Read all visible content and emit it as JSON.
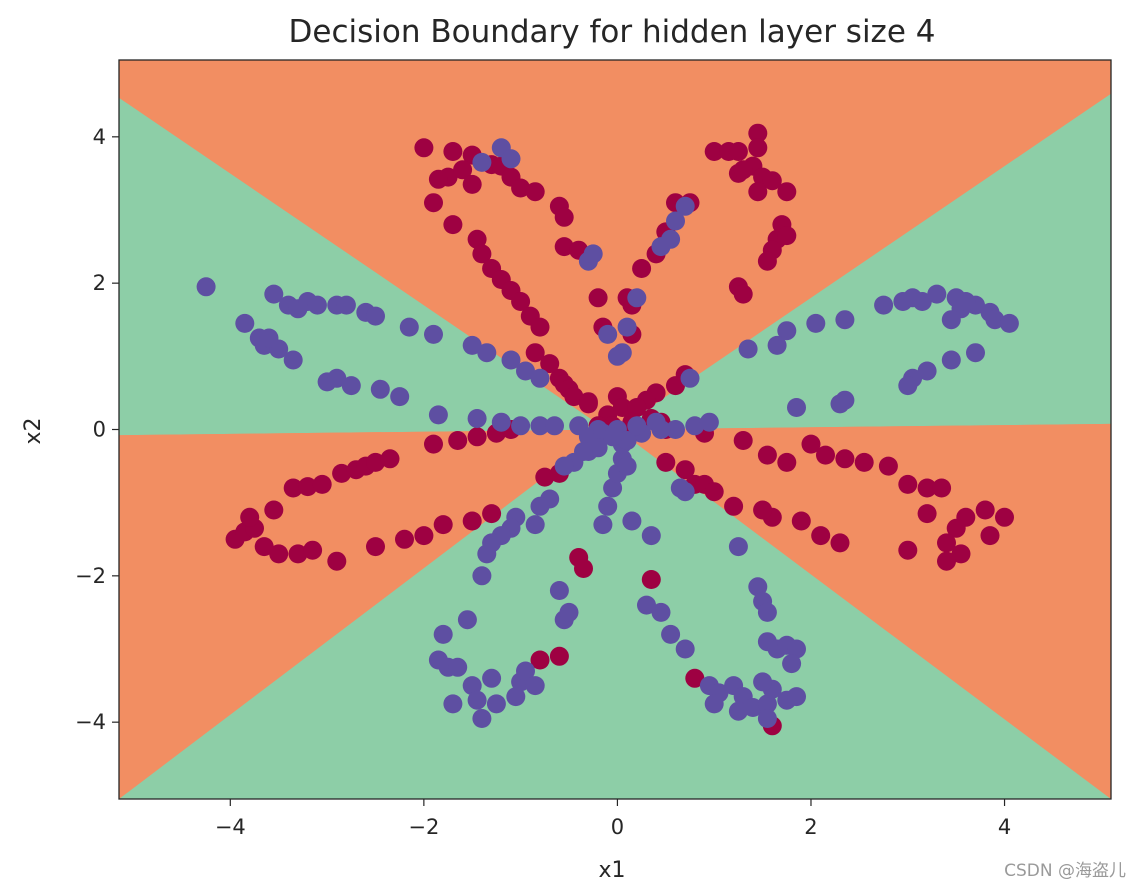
{
  "chart_data": {
    "type": "scatter",
    "title": "Decision Boundary for hidden layer size 4",
    "xlabel": "x1",
    "ylabel": "x2",
    "xlim": [
      -5.15,
      5.1
    ],
    "ylim": [
      -5.05,
      5.05
    ],
    "xticks": [
      -4,
      -2,
      0,
      2,
      4
    ],
    "xtick_labels": [
      "−4",
      "−2",
      "0",
      "2",
      "4"
    ],
    "yticks": [
      4,
      2,
      0,
      -2,
      -4
    ],
    "ytick_labels": [
      "4",
      "2",
      "0",
      "−2",
      "−4"
    ],
    "grid": false,
    "decision_regions": {
      "colors": {
        "class0": "#f28e62",
        "class1": "#8dcea7"
      },
      "boundary_lines": [
        {
          "slope": -0.9,
          "intercept": -0.1
        },
        {
          "slope": 0.9,
          "intercept": 0.0
        },
        {
          "slope": 0.015,
          "intercept": 0.0
        }
      ],
      "regions": [
        {
          "name": "left",
          "class": 1
        },
        {
          "name": "top",
          "class": 0
        },
        {
          "name": "right",
          "class": 1
        },
        {
          "name": "lower-left",
          "class": 0
        },
        {
          "name": "lower-right",
          "class": 0
        },
        {
          "name": "bottom",
          "class": 1
        }
      ]
    },
    "series": [
      {
        "color": "#9e0142",
        "points": [
          [
            -2.0,
            3.85
          ],
          [
            -1.7,
            3.8
          ],
          [
            -1.5,
            3.75
          ],
          [
            -1.3,
            3.62
          ],
          [
            -1.2,
            3.6
          ],
          [
            -1.75,
            3.45
          ],
          [
            -1.6,
            3.55
          ],
          [
            -1.85,
            3.42
          ],
          [
            -1.5,
            3.35
          ],
          [
            -1.1,
            3.45
          ],
          [
            -1.0,
            3.3
          ],
          [
            -0.85,
            3.25
          ],
          [
            -0.6,
            3.05
          ],
          [
            -0.55,
            2.9
          ],
          [
            -1.9,
            3.1
          ],
          [
            -1.7,
            2.8
          ],
          [
            -1.45,
            2.6
          ],
          [
            -1.4,
            2.4
          ],
          [
            -1.3,
            2.2
          ],
          [
            -1.2,
            2.05
          ],
          [
            -1.1,
            1.9
          ],
          [
            -1.0,
            1.75
          ],
          [
            -0.9,
            1.55
          ],
          [
            -0.8,
            1.4
          ],
          [
            -0.55,
            2.5
          ],
          [
            -0.4,
            2.45
          ],
          [
            -0.2,
            1.8
          ],
          [
            -0.15,
            1.4
          ],
          [
            -0.6,
            0.7
          ],
          [
            -0.85,
            1.05
          ],
          [
            -0.7,
            0.9
          ],
          [
            -0.55,
            0.62
          ],
          [
            -0.5,
            0.55
          ],
          [
            -0.45,
            0.45
          ],
          [
            -0.3,
            0.38
          ],
          [
            -0.1,
            0.2
          ],
          [
            0.0,
            0.45
          ],
          [
            0.05,
            0.3
          ],
          [
            0.15,
            1.7
          ],
          [
            0.25,
            2.2
          ],
          [
            0.4,
            2.4
          ],
          [
            0.5,
            2.7
          ],
          [
            0.6,
            3.1
          ],
          [
            0.75,
            3.1
          ],
          [
            1.0,
            3.8
          ],
          [
            1.15,
            3.8
          ],
          [
            1.25,
            3.5
          ],
          [
            1.4,
            3.6
          ],
          [
            1.5,
            3.45
          ],
          [
            1.6,
            3.4
          ],
          [
            1.75,
            3.25
          ],
          [
            1.45,
            3.25
          ],
          [
            1.3,
            3.55
          ],
          [
            1.25,
            3.8
          ],
          [
            1.45,
            4.05
          ],
          [
            1.45,
            3.85
          ],
          [
            1.7,
            2.8
          ],
          [
            1.65,
            2.6
          ],
          [
            1.6,
            2.45
          ],
          [
            1.75,
            2.65
          ],
          [
            1.55,
            2.3
          ],
          [
            1.25,
            1.95
          ],
          [
            1.3,
            1.85
          ],
          [
            0.15,
            1.3
          ],
          [
            0.1,
            1.8
          ],
          [
            0.7,
            0.75
          ],
          [
            0.6,
            0.6
          ],
          [
            0.4,
            0.5
          ],
          [
            0.3,
            0.4
          ],
          [
            0.2,
            0.3
          ],
          [
            0.35,
            0.15
          ],
          [
            0.5,
            0.0
          ],
          [
            -3.95,
            -1.5
          ],
          [
            -3.85,
            -1.4
          ],
          [
            -3.75,
            -1.35
          ],
          [
            -3.65,
            -1.6
          ],
          [
            -3.5,
            -1.7
          ],
          [
            -3.3,
            -1.7
          ],
          [
            -3.15,
            -1.65
          ],
          [
            -2.9,
            -1.8
          ],
          [
            -3.8,
            -1.2
          ],
          [
            -3.55,
            -1.1
          ],
          [
            -3.35,
            -0.8
          ],
          [
            -3.2,
            -0.78
          ],
          [
            -3.05,
            -0.75
          ],
          [
            -2.85,
            -0.6
          ],
          [
            -2.7,
            -0.55
          ],
          [
            -2.6,
            -0.5
          ],
          [
            -2.5,
            -0.45
          ],
          [
            -2.35,
            -0.4
          ],
          [
            -2.2,
            -1.5
          ],
          [
            -2.5,
            -1.6
          ],
          [
            -2.0,
            -1.45
          ],
          [
            -1.8,
            -1.3
          ],
          [
            -1.5,
            -1.25
          ],
          [
            -1.3,
            -1.15
          ],
          [
            -1.9,
            -0.2
          ],
          [
            -1.65,
            -0.15
          ],
          [
            -1.45,
            -0.1
          ],
          [
            -1.25,
            -0.05
          ],
          [
            -1.1,
            0.0
          ],
          [
            -0.75,
            -0.65
          ],
          [
            -0.4,
            -1.75
          ],
          [
            -0.35,
            -1.9
          ],
          [
            -0.2,
            0.05
          ],
          [
            0.35,
            -2.05
          ],
          [
            0.7,
            -0.55
          ],
          [
            0.5,
            -0.45
          ],
          [
            0.8,
            -0.75
          ],
          [
            0.9,
            -0.75
          ],
          [
            1.0,
            -0.85
          ],
          [
            1.2,
            -1.05
          ],
          [
            1.6,
            -1.2
          ],
          [
            1.9,
            -1.25
          ],
          [
            2.1,
            -1.45
          ],
          [
            2.3,
            -1.55
          ],
          [
            1.5,
            -1.1
          ],
          [
            0.9,
            -0.05
          ],
          [
            1.3,
            -0.15
          ],
          [
            1.55,
            -0.35
          ],
          [
            1.75,
            -0.45
          ],
          [
            2.0,
            -0.2
          ],
          [
            2.15,
            -0.35
          ],
          [
            2.35,
            -0.4
          ],
          [
            2.55,
            -0.45
          ],
          [
            2.8,
            -0.5
          ],
          [
            3.0,
            -0.75
          ],
          [
            3.2,
            -0.8
          ],
          [
            3.35,
            -0.8
          ],
          [
            3.6,
            -1.2
          ],
          [
            3.8,
            -1.1
          ],
          [
            4.0,
            -1.2
          ],
          [
            3.5,
            -1.35
          ],
          [
            3.4,
            -1.55
          ],
          [
            3.55,
            -1.7
          ],
          [
            3.4,
            -1.8
          ],
          [
            3.0,
            -1.65
          ],
          [
            3.2,
            -1.15
          ],
          [
            3.85,
            -1.45
          ],
          [
            0.8,
            -3.4
          ],
          [
            -0.8,
            -3.15
          ],
          [
            -0.6,
            -3.1
          ],
          [
            1.6,
            -4.05
          ],
          [
            -0.3,
            0.35
          ],
          [
            0.15,
            0.1
          ],
          [
            -0.05,
            0.05
          ],
          [
            0.1,
            -0.05
          ],
          [
            0.45,
            0.1
          ],
          [
            -0.6,
            -0.6
          ]
        ]
      },
      {
        "color": "#5e4fa2",
        "points": [
          [
            -4.25,
            1.95
          ],
          [
            -3.85,
            1.45
          ],
          [
            -3.7,
            1.25
          ],
          [
            -3.65,
            1.15
          ],
          [
            -3.5,
            1.1
          ],
          [
            -3.35,
            0.95
          ],
          [
            -3.6,
            1.25
          ],
          [
            -3.55,
            1.85
          ],
          [
            -3.4,
            1.7
          ],
          [
            -3.3,
            1.65
          ],
          [
            -3.2,
            1.75
          ],
          [
            -3.1,
            1.7
          ],
          [
            -2.9,
            1.7
          ],
          [
            -2.8,
            1.7
          ],
          [
            -2.6,
            1.6
          ],
          [
            -2.5,
            1.55
          ],
          [
            -2.15,
            1.4
          ],
          [
            -1.9,
            1.3
          ],
          [
            -1.5,
            1.15
          ],
          [
            -1.35,
            1.05
          ],
          [
            -1.1,
            0.95
          ],
          [
            -0.95,
            0.8
          ],
          [
            -0.8,
            0.7
          ],
          [
            -3.0,
            0.65
          ],
          [
            -2.9,
            0.7
          ],
          [
            -2.75,
            0.6
          ],
          [
            -2.45,
            0.55
          ],
          [
            -2.25,
            0.45
          ],
          [
            -1.85,
            0.2
          ],
          [
            -1.45,
            0.15
          ],
          [
            -1.2,
            0.1
          ],
          [
            -1.0,
            0.05
          ],
          [
            -0.8,
            0.05
          ],
          [
            -0.65,
            0.05
          ],
          [
            -0.4,
            0.05
          ],
          [
            -0.2,
            0.0
          ],
          [
            -1.2,
            3.85
          ],
          [
            -1.1,
            3.7
          ],
          [
            -1.4,
            3.65
          ],
          [
            0.7,
            3.05
          ],
          [
            0.6,
            2.85
          ],
          [
            0.55,
            2.6
          ],
          [
            0.45,
            2.5
          ],
          [
            0.2,
            1.8
          ],
          [
            0.1,
            1.4
          ],
          [
            0.05,
            1.05
          ],
          [
            0.0,
            1.0
          ],
          [
            -0.1,
            1.3
          ],
          [
            -0.3,
            2.3
          ],
          [
            -0.25,
            2.4
          ],
          [
            1.75,
            1.35
          ],
          [
            1.65,
            1.15
          ],
          [
            2.05,
            1.45
          ],
          [
            2.35,
            1.5
          ],
          [
            2.75,
            1.7
          ],
          [
            2.95,
            1.75
          ],
          [
            3.05,
            1.8
          ],
          [
            3.15,
            1.75
          ],
          [
            3.3,
            1.85
          ],
          [
            3.5,
            1.8
          ],
          [
            3.7,
            1.7
          ],
          [
            3.85,
            1.6
          ],
          [
            3.9,
            1.5
          ],
          [
            4.05,
            1.45
          ],
          [
            3.55,
            1.65
          ],
          [
            3.45,
            1.5
          ],
          [
            3.6,
            1.75
          ],
          [
            3.7,
            1.05
          ],
          [
            3.45,
            0.95
          ],
          [
            3.2,
            0.8
          ],
          [
            3.05,
            0.7
          ],
          [
            3.0,
            0.6
          ],
          [
            2.35,
            0.4
          ],
          [
            2.3,
            0.35
          ],
          [
            1.85,
            0.3
          ],
          [
            0.8,
            0.05
          ],
          [
            0.95,
            0.1
          ],
          [
            0.6,
            0.0
          ],
          [
            0.45,
            0.0
          ],
          [
            0.25,
            -0.05
          ],
          [
            1.35,
            1.1
          ],
          [
            0.75,
            0.7
          ],
          [
            0.7,
            -0.85
          ],
          [
            0.65,
            -0.8
          ],
          [
            -0.3,
            -0.3
          ],
          [
            -0.45,
            -0.45
          ],
          [
            -0.55,
            -0.5
          ],
          [
            -0.7,
            -0.95
          ],
          [
            -0.8,
            -1.05
          ],
          [
            -1.05,
            -1.2
          ],
          [
            -1.1,
            -1.35
          ],
          [
            -1.2,
            -1.45
          ],
          [
            -1.35,
            -1.7
          ],
          [
            -1.4,
            -2.0
          ],
          [
            -1.3,
            -1.55
          ],
          [
            -0.85,
            -1.3
          ],
          [
            -0.6,
            -2.2
          ],
          [
            -0.55,
            -2.6
          ],
          [
            -0.5,
            -2.5
          ],
          [
            -0.15,
            -1.3
          ],
          [
            -0.1,
            -1.05
          ],
          [
            -0.05,
            -0.8
          ],
          [
            0.0,
            -0.6
          ],
          [
            0.05,
            -0.4
          ],
          [
            0.15,
            -1.25
          ],
          [
            0.35,
            -1.45
          ],
          [
            0.3,
            -2.4
          ],
          [
            0.45,
            -2.5
          ],
          [
            0.55,
            -2.8
          ],
          [
            0.7,
            -3.0
          ],
          [
            1.25,
            -1.6
          ],
          [
            1.45,
            -2.15
          ],
          [
            1.5,
            -2.35
          ],
          [
            1.55,
            -2.5
          ],
          [
            -1.8,
            -2.8
          ],
          [
            -1.55,
            -2.6
          ],
          [
            -1.85,
            -3.15
          ],
          [
            -1.75,
            -3.25
          ],
          [
            -1.65,
            -3.25
          ],
          [
            -1.5,
            -3.5
          ],
          [
            -1.7,
            -3.75
          ],
          [
            -1.45,
            -3.7
          ],
          [
            -1.4,
            -3.95
          ],
          [
            -1.25,
            -3.75
          ],
          [
            -1.05,
            -3.65
          ],
          [
            -1.0,
            -3.45
          ],
          [
            -0.95,
            -3.3
          ],
          [
            -0.85,
            -3.5
          ],
          [
            -1.3,
            -3.4
          ],
          [
            1.55,
            -2.9
          ],
          [
            1.65,
            -3.0
          ],
          [
            1.75,
            -2.95
          ],
          [
            1.85,
            -3.0
          ],
          [
            1.8,
            -3.2
          ],
          [
            0.95,
            -3.5
          ],
          [
            1.05,
            -3.6
          ],
          [
            1.2,
            -3.5
          ],
          [
            1.3,
            -3.65
          ],
          [
            1.4,
            -3.8
          ],
          [
            1.55,
            -3.75
          ],
          [
            1.6,
            -3.55
          ],
          [
            1.75,
            -3.7
          ],
          [
            1.85,
            -3.65
          ],
          [
            1.25,
            -3.85
          ],
          [
            1.55,
            -3.95
          ],
          [
            1.0,
            -3.75
          ],
          [
            1.5,
            -3.45
          ],
          [
            -0.3,
            -0.1
          ],
          [
            -0.15,
            -0.05
          ],
          [
            0.0,
            0.0
          ],
          [
            0.05,
            -0.2
          ],
          [
            0.1,
            -0.15
          ],
          [
            -0.2,
            -0.25
          ],
          [
            -0.35,
            -0.3
          ],
          [
            0.1,
            -0.5
          ],
          [
            0.4,
            0.1
          ],
          [
            0.2,
            0.05
          ],
          [
            -0.05,
            -0.1
          ]
        ]
      }
    ]
  },
  "watermark": "CSDN @海盗儿"
}
